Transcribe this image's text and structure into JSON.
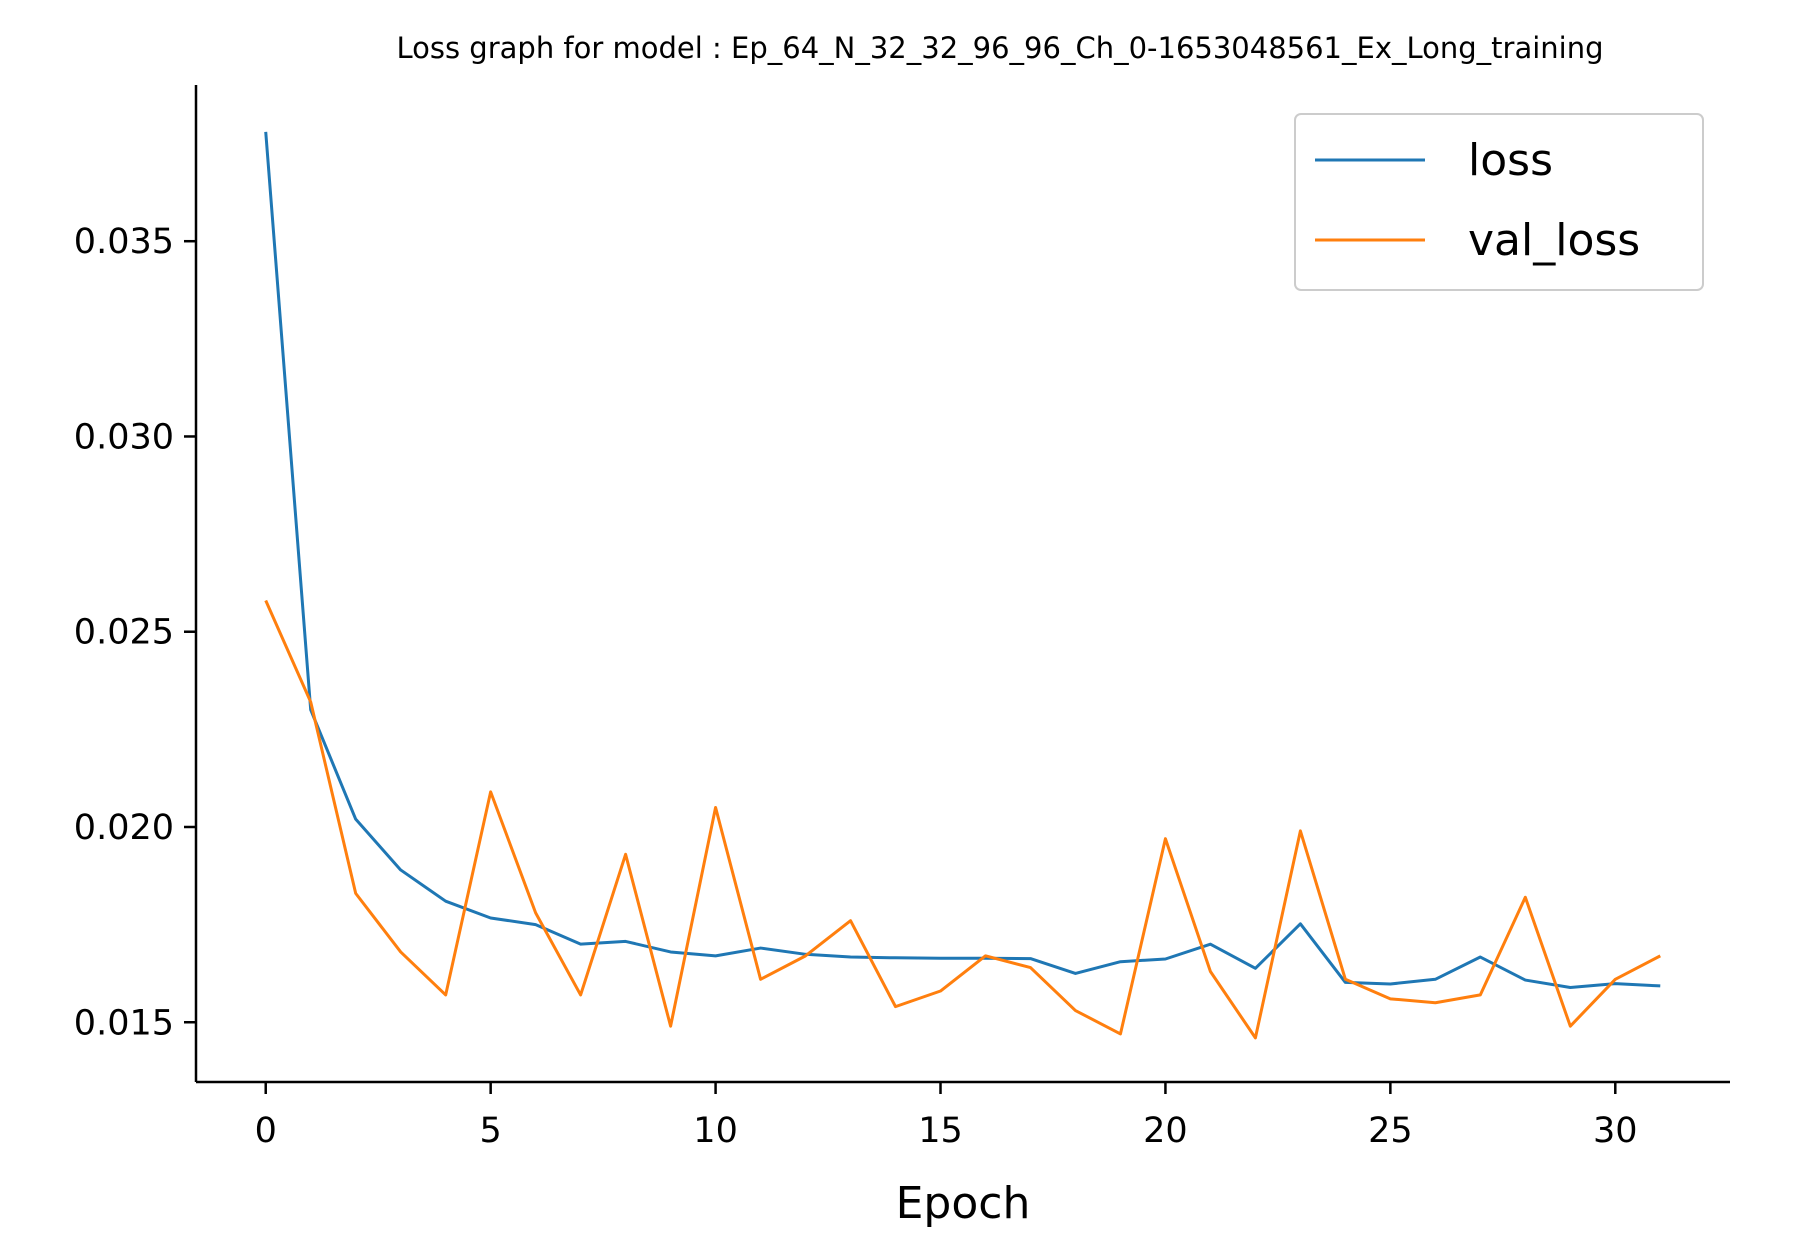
{
  "chart_data": {
    "type": "line",
    "title": "Loss graph for model : Ep_64_N_32_32_96_96_Ch_0-1653048561_Ex_Long_training",
    "xlabel": "Epoch",
    "ylabel": "",
    "xlim": [
      -1.55,
      32.55
    ],
    "ylim": [
      0.01347,
      0.039
    ],
    "x_ticks": [
      0,
      5,
      10,
      15,
      20,
      25,
      30
    ],
    "y_ticks": [
      0.015,
      0.02,
      0.025,
      0.03,
      0.035
    ],
    "y_tick_labels": [
      "0.015",
      "0.020",
      "0.025",
      "0.030",
      "0.035"
    ],
    "grid": false,
    "legend_position": "upper right",
    "x": [
      0,
      1,
      2,
      3,
      4,
      5,
      6,
      7,
      8,
      9,
      10,
      11,
      12,
      13,
      14,
      15,
      16,
      17,
      18,
      19,
      20,
      21,
      22,
      23,
      24,
      25,
      26,
      27,
      28,
      29,
      30,
      31
    ],
    "series": [
      {
        "name": "loss",
        "color": "#1f77b4",
        "values": [
          0.0378,
          0.023,
          0.0202,
          0.0189,
          0.0181,
          0.01767,
          0.0175,
          0.017,
          0.01707,
          0.0168,
          0.0167,
          0.0169,
          0.01674,
          0.01667,
          0.01665,
          0.01664,
          0.01664,
          0.01663,
          0.01625,
          0.01655,
          0.01662,
          0.017,
          0.01638,
          0.01752,
          0.01602,
          0.01598,
          0.0161,
          0.01667,
          0.01608,
          0.01589,
          0.01599,
          0.01593
        ]
      },
      {
        "name": "val_loss",
        "color": "#ff7f0e",
        "values": [
          0.0258,
          0.0232,
          0.0183,
          0.0168,
          0.0157,
          0.0209,
          0.0178,
          0.0157,
          0.0193,
          0.0149,
          0.0205,
          0.0161,
          0.0167,
          0.0176,
          0.0154,
          0.0158,
          0.0167,
          0.0164,
          0.0153,
          0.0147,
          0.0197,
          0.0163,
          0.0146,
          0.0199,
          0.0161,
          0.0156,
          0.0155,
          0.0157,
          0.0182,
          0.0149,
          0.0161,
          0.0167
        ]
      }
    ]
  }
}
